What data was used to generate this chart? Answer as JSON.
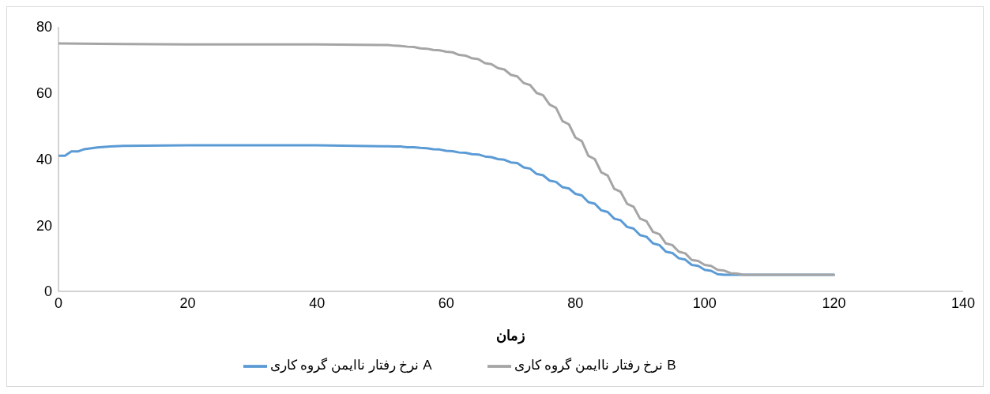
{
  "chart_data": {
    "type": "line",
    "xlabel": "زمان",
    "xlim": [
      0,
      140
    ],
    "xticks": [
      0,
      20,
      40,
      60,
      80,
      100,
      120,
      140
    ],
    "ylim": [
      0,
      80
    ],
    "yticks": [
      0,
      20,
      40,
      60,
      80
    ],
    "grid": false,
    "legend": "bottom",
    "marker": "none",
    "line_style": "solid",
    "series": [
      {
        "name": "نرخ رفتار ناایمن گروه کاری A",
        "color": "#5b9bd5",
        "x": [
          0,
          1,
          2,
          3,
          4,
          6,
          8,
          10,
          20,
          30,
          40,
          50,
          51,
          52,
          53,
          54,
          55,
          56,
          57,
          58,
          59,
          60,
          61,
          62,
          63,
          64,
          65,
          66,
          67,
          68,
          69,
          70,
          71,
          72,
          73,
          74,
          75,
          76,
          77,
          78,
          79,
          80,
          81,
          82,
          83,
          84,
          85,
          86,
          87,
          88,
          89,
          90,
          91,
          92,
          93,
          94,
          95,
          96,
          97,
          98,
          99,
          100,
          101,
          102,
          103,
          104,
          106,
          120
        ],
        "values": [
          41,
          41,
          42.3,
          42.3,
          43,
          43.5,
          43.8,
          44,
          44.2,
          44.2,
          44.2,
          43.9,
          43.9,
          43.8,
          43.8,
          43.6,
          43.6,
          43.4,
          43.3,
          43,
          42.9,
          42.5,
          42.4,
          42,
          41.9,
          41.5,
          41.4,
          40.8,
          40.6,
          40,
          39.8,
          39,
          38.8,
          37.5,
          37.1,
          35.5,
          35.1,
          33.5,
          33.1,
          31.5,
          31.1,
          29.5,
          29,
          27,
          26.5,
          24.5,
          24,
          22,
          21.5,
          19.5,
          19,
          17,
          16.5,
          14.5,
          14,
          12,
          11.6,
          10,
          9.6,
          8,
          7.7,
          6.5,
          6.2,
          5.2,
          5,
          5,
          5,
          5
        ]
      },
      {
        "name": "نرخ رفتار ناایمن گروه کاری B",
        "color": "#a5a5a5",
        "x": [
          0,
          10,
          20,
          30,
          40,
          50,
          51,
          52,
          53,
          54,
          55,
          56,
          57,
          58,
          59,
          60,
          61,
          62,
          63,
          64,
          65,
          66,
          67,
          68,
          69,
          70,
          71,
          72,
          73,
          74,
          75,
          76,
          77,
          78,
          79,
          80,
          81,
          82,
          83,
          84,
          85,
          86,
          87,
          88,
          89,
          90,
          91,
          92,
          93,
          94,
          95,
          96,
          97,
          98,
          99,
          100,
          101,
          102,
          103,
          104,
          105,
          106,
          120
        ],
        "values": [
          75,
          74.8,
          74.7,
          74.7,
          74.7,
          74.5,
          74.5,
          74.3,
          74.2,
          74,
          73.9,
          73.5,
          73.4,
          73,
          72.9,
          72.5,
          72.3,
          71.5,
          71.3,
          70.5,
          70.2,
          69,
          68.7,
          67.5,
          67.1,
          65.5,
          65,
          63,
          62.4,
          60,
          59.3,
          56.5,
          55.5,
          51.5,
          50.5,
          46.5,
          45.4,
          41,
          40,
          36,
          35,
          31,
          30.1,
          26.5,
          25.6,
          22,
          21.2,
          18,
          17.3,
          14.5,
          14,
          12,
          11.5,
          9.5,
          9.2,
          8,
          7.7,
          6.5,
          6.3,
          5.5,
          5.4,
          5,
          5
        ]
      }
    ]
  }
}
